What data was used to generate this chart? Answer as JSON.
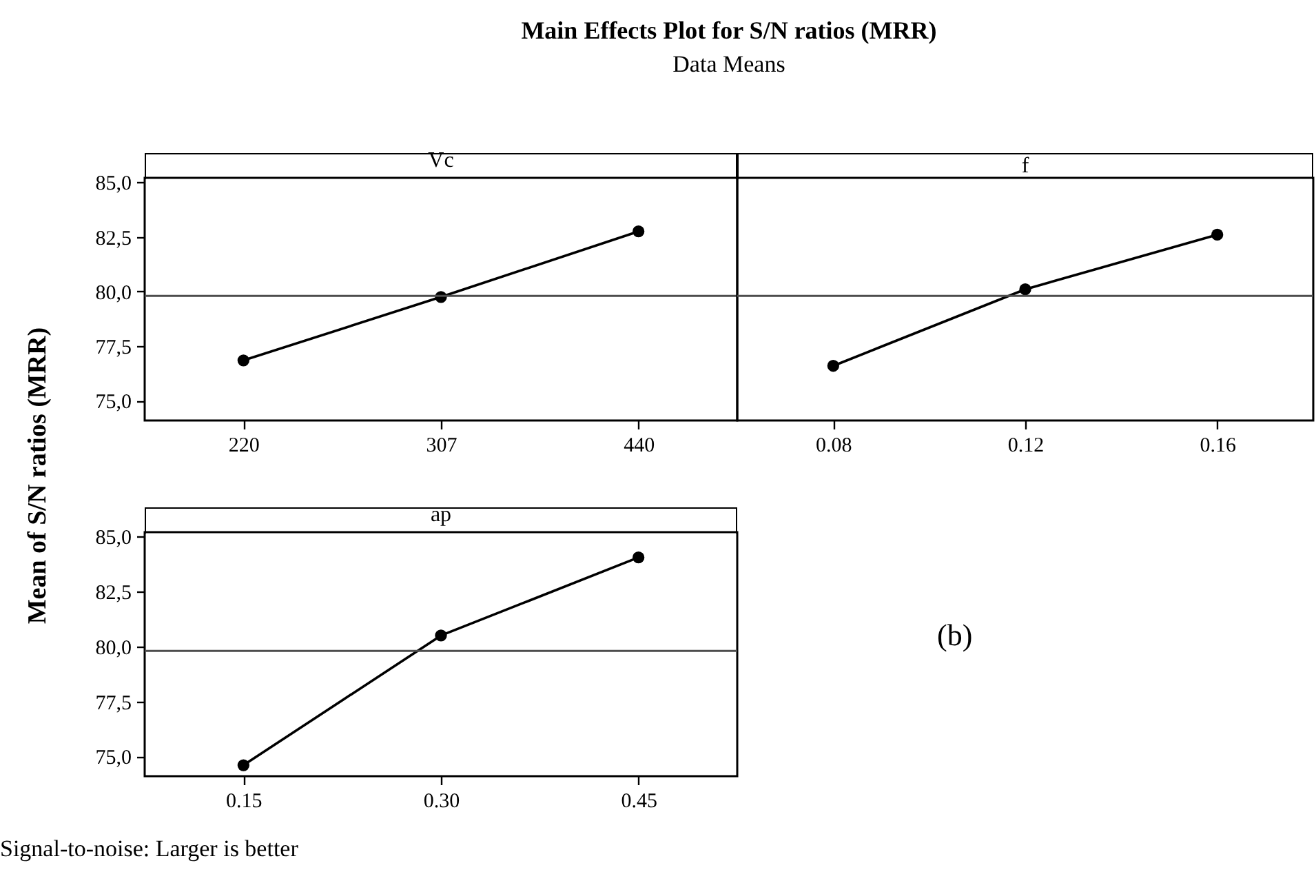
{
  "chart_data": [
    {
      "type": "other",
      "title": "Main Effects Plot for S/N ratios (MRR)",
      "subtitle": "Data Means",
      "ylabel": "Mean of S/N ratios (MRR)",
      "annotations": [
        "(b)",
        "Signal-to-noise: Larger is better"
      ]
    },
    {
      "type": "line",
      "title": "Vc",
      "categories": [
        "220",
        "307",
        "440"
      ],
      "series": [
        {
          "color": "#000000",
          "values": [
            76.85,
            79.75,
            82.75
          ]
        }
      ],
      "ylim": [
        74.1,
        85.2
      ],
      "yticks": [
        {
          "value": 75,
          "label": "75,0"
        },
        {
          "value": 77.5,
          "label": "77,5"
        },
        {
          "value": 80,
          "label": "80,0"
        },
        {
          "value": 82.5,
          "label": "82,5"
        },
        {
          "value": 85,
          "label": "85,0"
        }
      ],
      "ref_lines": [
        {
          "axis": "y",
          "value": 79.8,
          "color": "#4d4d4d"
        }
      ],
      "marker": "circle",
      "line_style": "solid",
      "grid": false
    },
    {
      "type": "line",
      "title": "f",
      "categories": [
        "0.08",
        "0.12",
        "0.16"
      ],
      "series": [
        {
          "color": "#000000",
          "values": [
            76.6,
            80.1,
            82.6
          ]
        }
      ],
      "ylim": [
        74.1,
        85.2
      ],
      "ref_lines": [
        {
          "axis": "y",
          "value": 79.8,
          "color": "#4d4d4d"
        }
      ],
      "marker": "circle",
      "line_style": "solid",
      "grid": false,
      "tick_labels": "x"
    },
    {
      "type": "line",
      "title": "ap",
      "categories": [
        "0.15",
        "0.30",
        "0.45"
      ],
      "series": [
        {
          "color": "#000000",
          "values": [
            74.6,
            80.5,
            84.05
          ]
        }
      ],
      "ylim": [
        74.1,
        85.2
      ],
      "yticks": [
        {
          "value": 75,
          "label": "75,0"
        },
        {
          "value": 77.5,
          "label": "77,5"
        },
        {
          "value": 80,
          "label": "80,0"
        },
        {
          "value": 82.5,
          "label": "82,5"
        },
        {
          "value": 85,
          "label": "85,0"
        }
      ],
      "ref_lines": [
        {
          "axis": "y",
          "value": 79.8,
          "color": "#4d4d4d"
        }
      ],
      "marker": "circle",
      "line_style": "solid",
      "grid": false
    }
  ]
}
